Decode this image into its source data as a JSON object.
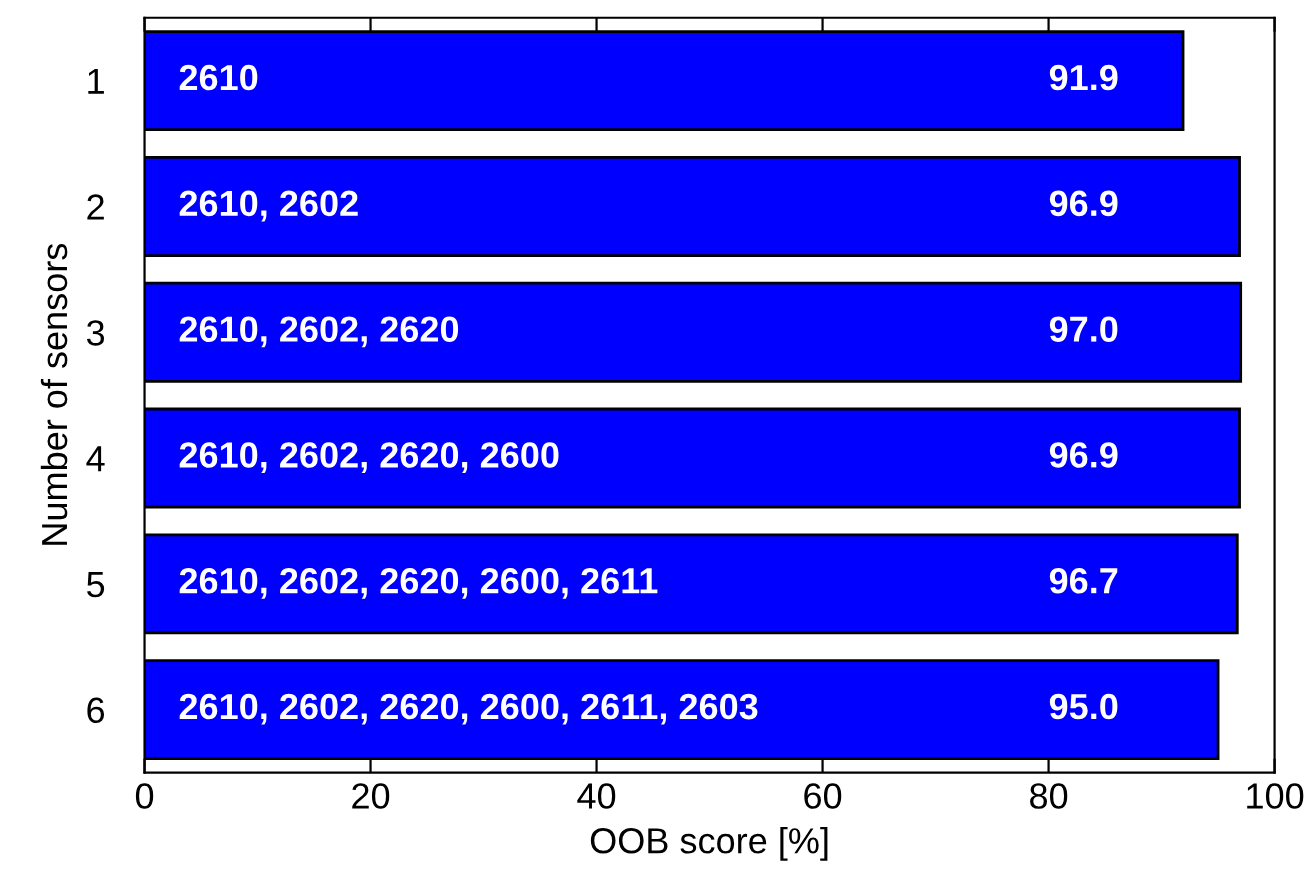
{
  "chart_data": {
    "type": "bar",
    "orientation": "horizontal",
    "categories": [
      "1",
      "2",
      "3",
      "4",
      "5",
      "6"
    ],
    "values": [
      91.9,
      96.9,
      97.0,
      96.9,
      96.7,
      95.0
    ],
    "value_labels": [
      "91.9",
      "96.9",
      "97.0",
      "96.9",
      "96.7",
      "95.0"
    ],
    "color": "#0000ff",
    "xlabel": "OOB score [%]",
    "ylabel": "Number of sensors",
    "xlim": [
      0,
      100
    ],
    "xticks": [
      0,
      20,
      40,
      60,
      80,
      100
    ],
    "annotations": [
      "2610",
      "2610, 2602",
      "2610, 2602, 2620",
      "2610, 2602, 2620, 2600",
      "2610, 2602, 2620, 2600, 2611",
      "2610, 2602, 2620, 2600, 2611, 2603"
    ],
    "grid": false,
    "legend": false
  }
}
